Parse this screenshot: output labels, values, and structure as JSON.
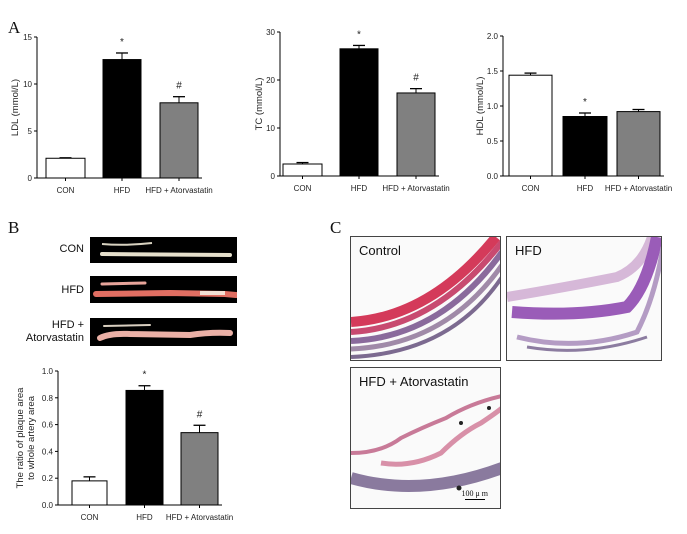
{
  "panels": {
    "a": "A",
    "b": "B",
    "c": "C"
  },
  "chart_data": [
    {
      "type": "bar",
      "title": "",
      "ylabel": "LDL (mmol/L)",
      "xlabel": "",
      "ylim": [
        0,
        15
      ],
      "yticks": [
        "0",
        "5",
        "10",
        "15"
      ],
      "ytick_values": [
        0,
        5,
        10,
        15
      ],
      "categories": [
        "CON",
        "HFD",
        "HFD + Atorvastatin"
      ],
      "values": [
        2.1,
        12.6,
        8.0
      ],
      "errors": [
        0.05,
        0.7,
        0.65
      ],
      "annotations": [
        "",
        "*",
        "#"
      ]
    },
    {
      "type": "bar",
      "title": "",
      "ylabel": "TC (mmol/L)",
      "xlabel": "",
      "ylim": [
        0,
        30
      ],
      "yticks": [
        "0",
        "10",
        "20",
        "30"
      ],
      "ytick_values": [
        0,
        10,
        20,
        30
      ],
      "categories": [
        "CON",
        "HFD",
        "HFD + Atorvastatin"
      ],
      "values": [
        2.5,
        26.5,
        17.3
      ],
      "errors": [
        0.3,
        0.7,
        0.9
      ],
      "annotations": [
        "",
        "*",
        "#"
      ]
    },
    {
      "type": "bar",
      "title": "",
      "ylabel": "HDL (mmol/L)",
      "xlabel": "",
      "ylim": [
        0,
        2.0
      ],
      "yticks": [
        "0.0",
        "0.5",
        "1.0",
        "1.5",
        "2.0"
      ],
      "ytick_values": [
        0,
        0.5,
        1.0,
        1.5,
        2.0
      ],
      "categories": [
        "CON",
        "HFD",
        "HFD + Atorvastatin"
      ],
      "values": [
        1.44,
        0.85,
        0.92
      ],
      "errors": [
        0.03,
        0.05,
        0.03
      ],
      "annotations": [
        "",
        "*",
        ""
      ]
    },
    {
      "type": "bar",
      "title": "",
      "ylabel": "The ratio of plaque area\nto whole artery area",
      "xlabel": "",
      "ylim": [
        0,
        1.0
      ],
      "yticks": [
        "0.0",
        "0.2",
        "0.4",
        "0.6",
        "0.8",
        "1.0"
      ],
      "ytick_values": [
        0,
        0.2,
        0.4,
        0.6,
        0.8,
        1.0
      ],
      "categories": [
        "CON",
        "HFD",
        "HFD + Atorvastatin"
      ],
      "values": [
        0.18,
        0.855,
        0.54
      ],
      "errors": [
        0.03,
        0.035,
        0.055
      ],
      "annotations": [
        "",
        "*",
        "#"
      ]
    }
  ],
  "bar_colors": [
    "#ffffff",
    "#000000",
    "#808080"
  ],
  "artery_photos": [
    {
      "label": "CON"
    },
    {
      "label": "HFD"
    },
    {
      "label": "HFD +\nAtorvastatin"
    }
  ],
  "histology": [
    {
      "label": "Control"
    },
    {
      "label": "HFD"
    },
    {
      "label": "HFD + Atorvastatin",
      "scale_bar": "100 μ m"
    }
  ]
}
